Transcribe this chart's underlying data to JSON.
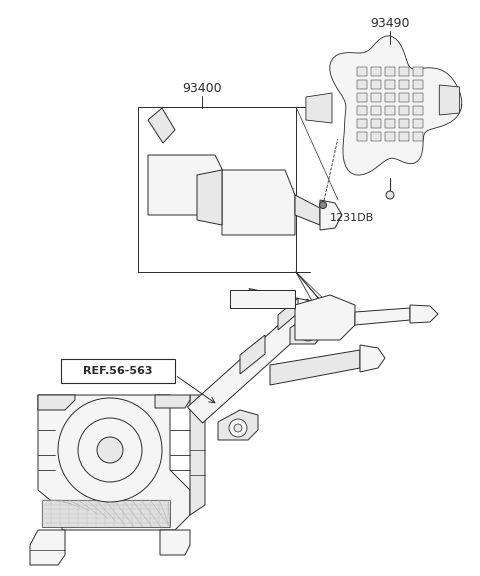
{
  "bg_color": "#ffffff",
  "line_color": "#2a2a2a",
  "fill_light": "#f5f5f5",
  "fill_mid": "#e8e8e8",
  "fill_dark": "#d0d0d0",
  "label_93400": "93400",
  "label_93490": "93490",
  "label_1231DB": "1231DB",
  "label_REF": "REF.56-563",
  "font_size": 9,
  "font_size_small": 8,
  "lw": 0.7,
  "lw_thick": 1.2
}
